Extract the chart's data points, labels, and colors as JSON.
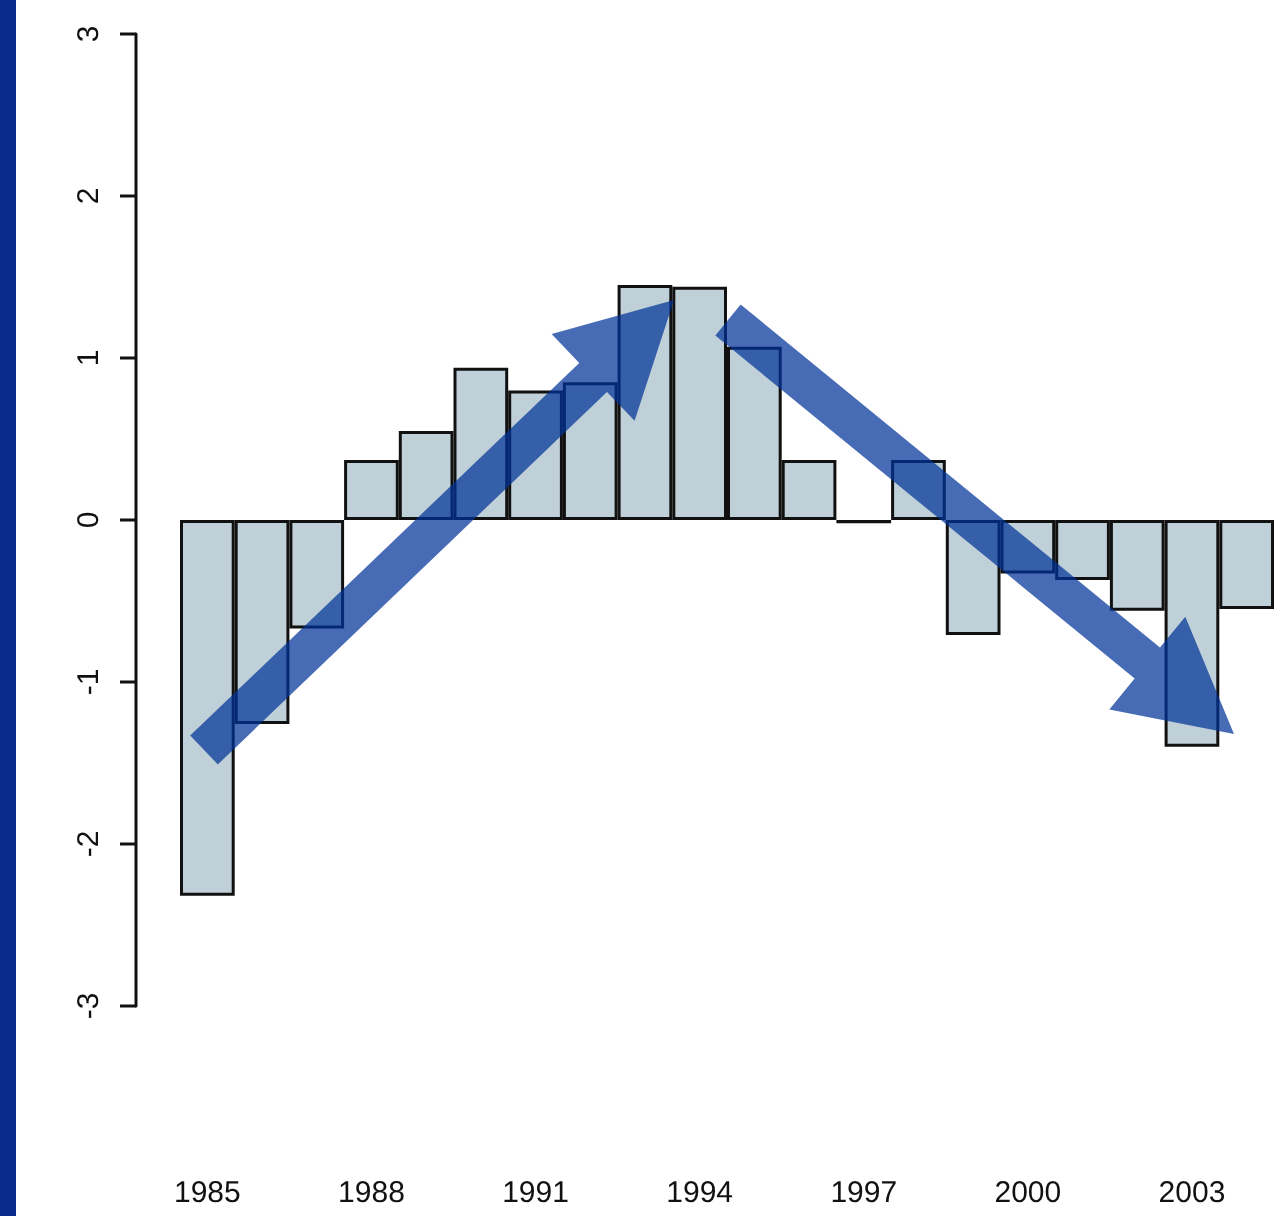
{
  "chart_data": {
    "type": "bar",
    "categories": [
      "1985",
      null,
      null,
      "1988",
      null,
      null,
      "1991",
      null,
      null,
      "1994",
      null,
      null,
      "1997",
      null,
      null,
      "2000",
      null,
      null,
      "2003",
      null
    ],
    "values": [
      -2.32,
      -1.26,
      -0.67,
      0.37,
      0.55,
      0.94,
      0.8,
      0.85,
      1.45,
      1.44,
      1.07,
      0.37,
      -0.02,
      0.37,
      -0.71,
      -0.33,
      -0.37,
      -0.56,
      -1.4,
      -0.55
    ],
    "color": "#c0d0d8",
    "ylim": [
      -3,
      3
    ],
    "yticks": [
      -3,
      -2,
      -1,
      0,
      1,
      2,
      3
    ]
  }
}
